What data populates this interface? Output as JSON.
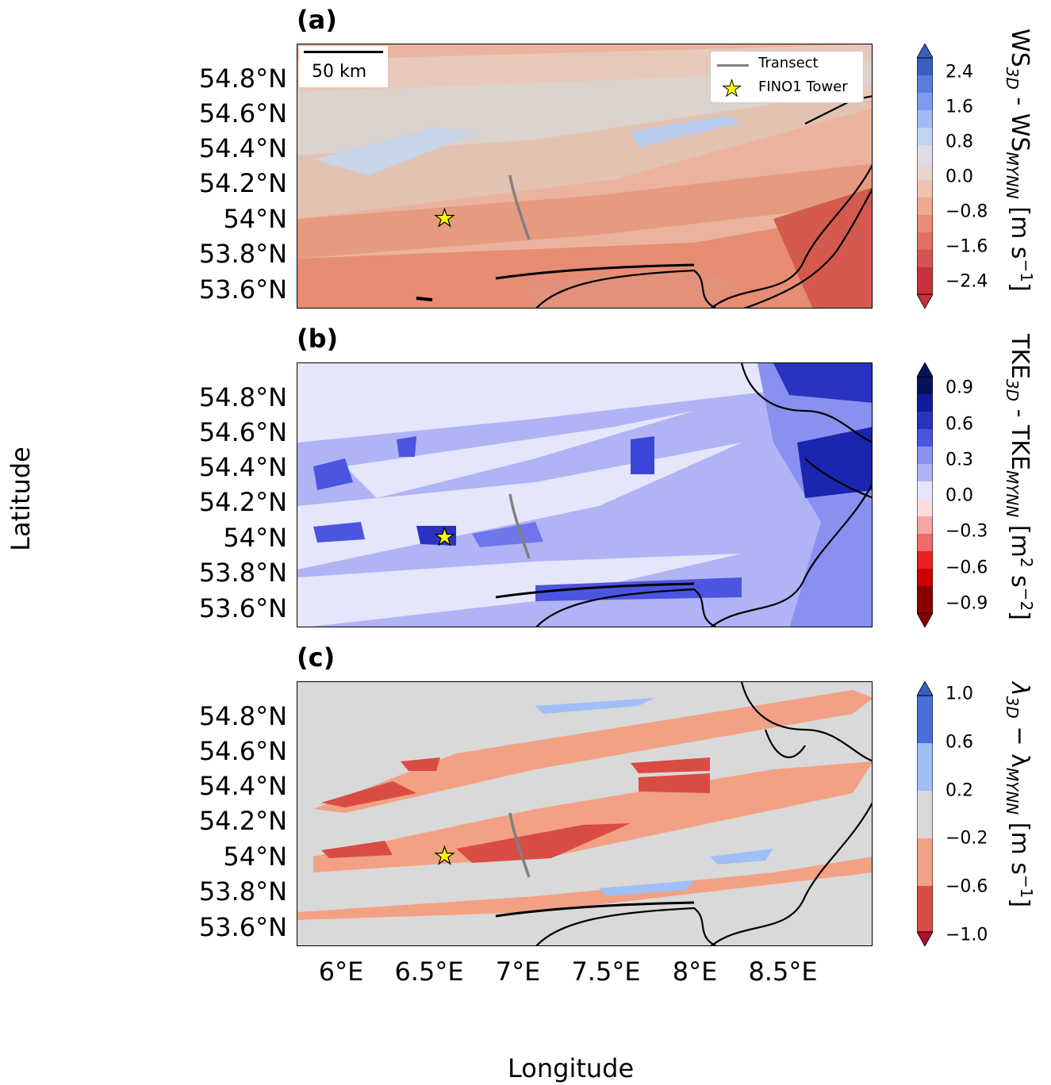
{
  "panels": [
    {
      "label": "(a)",
      "cbar_title_main": "WS",
      "cbar_title_sub1": "3D",
      "cbar_title_mid": " - WS",
      "cbar_title_sub2": "MYNN",
      "cbar_title_unit": " [m s",
      "cbar_title_sup": "−1",
      "cbar_title_end": "]",
      "cbar_ticks": [
        "2.4",
        "1.6",
        "0.8",
        "0.0",
        "−0.8",
        "−1.6",
        "−2.4"
      ]
    },
    {
      "label": "(b)",
      "cbar_title_main": "TKE",
      "cbar_title_sub1": "3D",
      "cbar_title_mid": " - TKE",
      "cbar_title_sub2": "MYNN",
      "cbar_title_unit": " [m",
      "cbar_title_sup": "2",
      "cbar_title_end": " s",
      "cbar_title_sup2": "−2",
      "cbar_title_end2": "]",
      "cbar_ticks": [
        "0.9",
        "0.6",
        "0.3",
        "0.0",
        "−0.3",
        "−0.6",
        "−0.9"
      ]
    },
    {
      "label": "(c)",
      "cbar_title_main": "λ",
      "cbar_title_sub1": "3D",
      "cbar_title_mid": " − λ",
      "cbar_title_sub2": "MYNN",
      "cbar_title_unit": " [m s",
      "cbar_title_sup": "−1",
      "cbar_title_end": "]",
      "cbar_ticks": [
        "1.0",
        "0.6",
        "0.2",
        "−0.2",
        "−0.6",
        "−1.0"
      ]
    }
  ],
  "lat_ticks": [
    "54.8°N",
    "54.6°N",
    "54.4°N",
    "54.2°N",
    "54°N",
    "53.8°N",
    "53.6°N"
  ],
  "lon_ticks": [
    "6°E",
    "6.5°E",
    "7°E",
    "7.5°E",
    "8°E",
    "8.5°E"
  ],
  "xlabel": "Longitude",
  "ylabel": "Latitude",
  "scalebar_label": "50 km",
  "legend": {
    "transect": "Transect",
    "tower": "FINO1 Tower"
  },
  "colors": {
    "ws_pos_dark": "#3b5fc0",
    "ws_neutral": "#dcd3cd",
    "ws_neg_light": "#f1b8a0",
    "ws_neg_mid": "#e57c65",
    "ws_neg_dark": "#c9303a",
    "tke_pos_light": "#b0b4f5",
    "tke_pos_mid": "#4c55e0",
    "tke_pos_dark": "#0a1590",
    "tke_neutral": "#e6e6fb",
    "lam_neutral": "#d9d9d9",
    "lam_neg1": "#f2a184",
    "lam_neg2": "#d94c44",
    "lam_pos1": "#9fbff5",
    "star": "#ffff00",
    "transect": "#808080",
    "coast": "#000000"
  }
}
